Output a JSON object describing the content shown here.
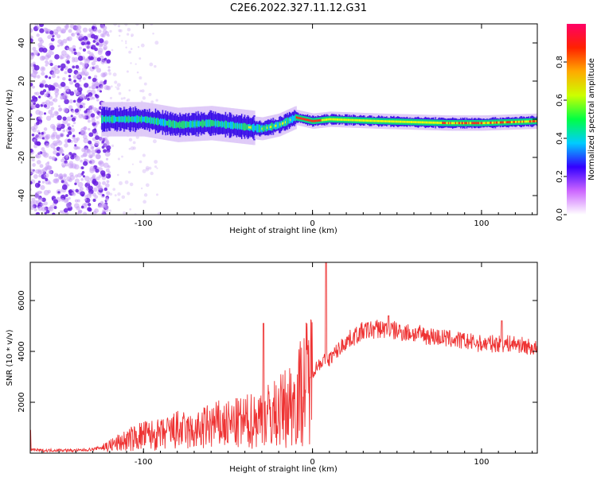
{
  "figure_title": "C2E6.2022.327.11.12.G31",
  "chart_data": [
    {
      "type": "heatmap",
      "xlabel": "Height of straight line (km)",
      "ylabel": "Frequency (Hz)",
      "xlim": [
        -167,
        133
      ],
      "ylim": [
        -50,
        50
      ],
      "x_ticks": [
        -100,
        0,
        100
      ],
      "y_ticks": [
        -40,
        -20,
        0,
        20,
        40
      ],
      "colorbar": {
        "label": "Normalized spectral amplitude",
        "range": [
          0,
          1
        ],
        "ticks": [
          "0.0",
          "0.2",
          "0.4",
          "0.6",
          "0.8"
        ],
        "colors": [
          "#ffffff",
          "#cc66ff",
          "#3300ff",
          "#00ccff",
          "#00ff44",
          "#ccff00",
          "#ffaa00",
          "#ff2200",
          "#ff0066"
        ]
      },
      "frequency_track": [
        {
          "x": -120,
          "y": 0
        },
        {
          "x": -100,
          "y": 0
        },
        {
          "x": -80,
          "y": -3
        },
        {
          "x": -60,
          "y": -2
        },
        {
          "x": -40,
          "y": -4
        },
        {
          "x": -30,
          "y": -5
        },
        {
          "x": -20,
          "y": -3
        },
        {
          "x": -10,
          "y": 1
        },
        {
          "x": 0,
          "y": -1
        },
        {
          "x": 10,
          "y": 0
        },
        {
          "x": 40,
          "y": -1
        },
        {
          "x": 80,
          "y": -2
        },
        {
          "x": 100,
          "y": -2
        },
        {
          "x": 133,
          "y": -1
        }
      ]
    },
    {
      "type": "line",
      "xlabel": "Height of straight line (km)",
      "ylabel": "SNR (10 * v/v)",
      "xlim": [
        -167,
        133
      ],
      "ylim": [
        0,
        7500
      ],
      "x_ticks": [
        -100,
        0,
        100
      ],
      "y_ticks": [
        2000,
        4000,
        6000
      ],
      "color": "#ee3333",
      "x": [
        -167,
        -160,
        -150,
        -140,
        -130,
        -120,
        -110,
        -100,
        -90,
        -80,
        -70,
        -60,
        -50,
        -40,
        -30,
        -20,
        -10,
        0,
        5,
        10,
        20,
        30,
        40,
        50,
        60,
        70,
        80,
        90,
        100,
        110,
        120,
        133
      ],
      "y": [
        150,
        100,
        120,
        100,
        150,
        300,
        500,
        700,
        700,
        900,
        800,
        1100,
        1100,
        1200,
        1400,
        1600,
        2100,
        3200,
        3600,
        3700,
        4400,
        4800,
        4900,
        4800,
        4700,
        4600,
        4500,
        4400,
        4300,
        4300,
        4300,
        4100
      ],
      "spikes": [
        {
          "x": -167,
          "y": 900
        },
        {
          "x": -29,
          "y": 5100
        },
        {
          "x": 8,
          "y": 7500
        },
        {
          "x": 45,
          "y": 5400
        },
        {
          "x": 112,
          "y": 5200
        }
      ]
    }
  ]
}
